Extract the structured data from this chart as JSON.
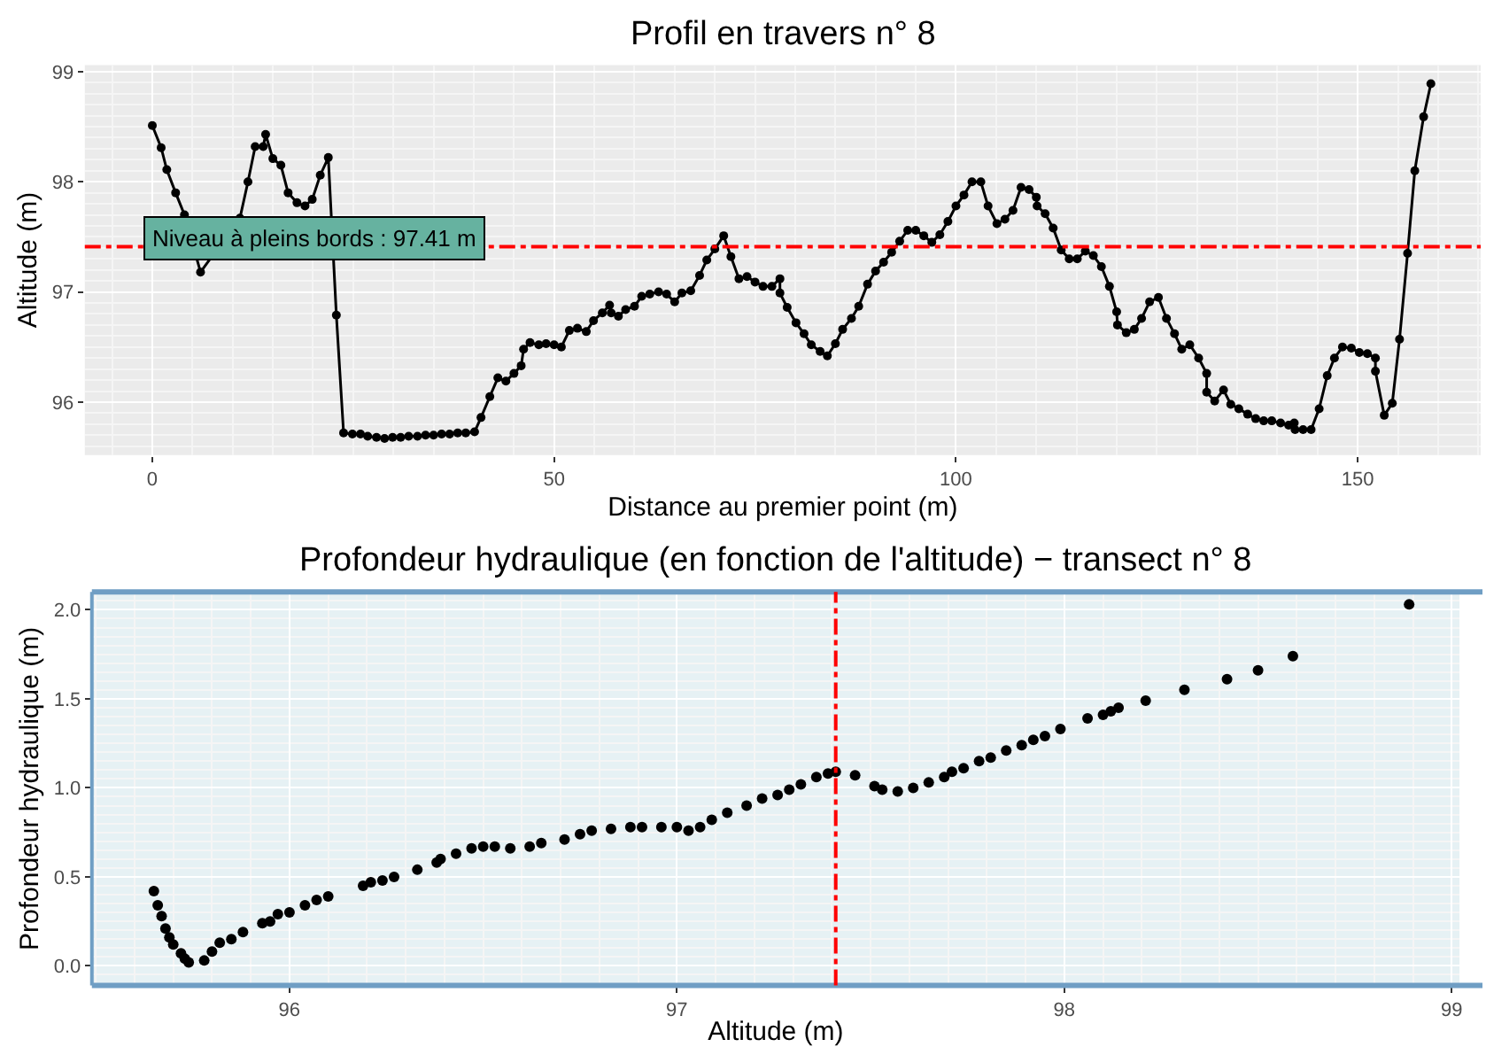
{
  "chart_data": [
    {
      "type": "line",
      "title": "Profil en travers n° 8",
      "xlabel": "Distance au premier point (m)",
      "ylabel": "Altitude (m)",
      "x": [
        0,
        1.1,
        1.8,
        2.9,
        4.0,
        6.0,
        10.9,
        11.9,
        12.8,
        13.8,
        14.1,
        15.0,
        16.0,
        16.9,
        18.0,
        19.0,
        19.9,
        20.9,
        21.9,
        22.9,
        23.8,
        24.9,
        25.9,
        26.8,
        27.9,
        28.9,
        29.9,
        30.9,
        31.9,
        33.0,
        34.0,
        35.0,
        36.0,
        37.0,
        38.0,
        39.0,
        40.1,
        40.9,
        42.0,
        43.0,
        44.0,
        45.0,
        45.9,
        46.2,
        47.0,
        48.1,
        49.0,
        50.0,
        50.9,
        51.9,
        52.9,
        54.0,
        54.9,
        56.0,
        56.9,
        57.1,
        58.0,
        58.9,
        60.0,
        60.9,
        61.9,
        63.0,
        64.0,
        65.0,
        65.9,
        67.0,
        68.1,
        69.0,
        70.0,
        71.1,
        72.0,
        73.0,
        74.0,
        75.0,
        76.0,
        77.1,
        78.1,
        78.1,
        79.0,
        80.1,
        81.1,
        82.0,
        83.1,
        84.0,
        85.0,
        85.9,
        87.0,
        87.9,
        89.0,
        90.0,
        91.0,
        92.0,
        93.0,
        94.0,
        95.0,
        96.0,
        97.0,
        98.0,
        99.0,
        100.0,
        101.0,
        102.0,
        103.1,
        104.0,
        105.1,
        106.1,
        107.1,
        108.1,
        109.1,
        110.0,
        110.1,
        111.1,
        112.1,
        113.1,
        114.1,
        115.1,
        116.1,
        117.1,
        118.1,
        119.1,
        120.0,
        120.1,
        121.2,
        122.2,
        123.1,
        124.1,
        125.2,
        126.2,
        127.2,
        128.1,
        129.1,
        130.2,
        131.2,
        131.2,
        132.2,
        133.3,
        134.2,
        135.2,
        136.3,
        137.3,
        138.3,
        139.3,
        140.4,
        141.4,
        142.1,
        142.2,
        143.2,
        144.2,
        145.2,
        146.2,
        147.1,
        148.1,
        149.2,
        150.2,
        151.2,
        152.2,
        152.2,
        153.3,
        154.3,
        155.2,
        156.2,
        157.1,
        158.2,
        159.1
      ],
      "series": [
        {
          "color": "#000000",
          "values": [
            98.51,
            98.31,
            98.11,
            97.9,
            97.7,
            97.18,
            97.67,
            98.0,
            98.32,
            98.32,
            98.43,
            98.21,
            98.15,
            97.9,
            97.81,
            97.78,
            97.84,
            98.06,
            98.22,
            96.79,
            95.72,
            95.71,
            95.71,
            95.69,
            95.68,
            95.67,
            95.68,
            95.68,
            95.69,
            95.69,
            95.7,
            95.7,
            95.71,
            95.71,
            95.72,
            95.72,
            95.73,
            95.86,
            96.05,
            96.22,
            96.19,
            96.26,
            96.33,
            96.48,
            96.54,
            96.52,
            96.53,
            96.52,
            96.5,
            96.65,
            96.67,
            96.64,
            96.74,
            96.81,
            96.88,
            96.81,
            96.78,
            96.84,
            96.87,
            96.96,
            96.98,
            97.0,
            96.98,
            96.91,
            96.99,
            97.01,
            97.15,
            97.29,
            97.39,
            97.51,
            97.32,
            97.12,
            97.14,
            97.09,
            97.05,
            97.05,
            97.12,
            96.99,
            96.86,
            96.72,
            96.62,
            96.52,
            96.46,
            96.42,
            96.53,
            96.66,
            96.76,
            96.87,
            97.07,
            97.19,
            97.27,
            97.36,
            97.46,
            97.56,
            97.56,
            97.51,
            97.45,
            97.52,
            97.64,
            97.78,
            97.88,
            98.0,
            98.0,
            97.78,
            97.62,
            97.66,
            97.74,
            97.95,
            97.93,
            97.86,
            97.78,
            97.71,
            97.58,
            97.38,
            97.3,
            97.3,
            97.37,
            97.33,
            97.23,
            97.05,
            96.82,
            96.7,
            96.63,
            96.66,
            96.76,
            96.91,
            96.95,
            96.76,
            96.62,
            96.48,
            96.52,
            96.4,
            96.26,
            96.09,
            96.01,
            96.11,
            95.98,
            95.94,
            95.89,
            95.85,
            95.83,
            95.83,
            95.81,
            95.79,
            95.81,
            95.75,
            95.75,
            95.75,
            95.94,
            96.24,
            96.4,
            96.5,
            96.49,
            96.45,
            96.44,
            96.4,
            96.28,
            95.88,
            95.99,
            96.57,
            97.35,
            98.1,
            98.59,
            98.89
          ]
        }
      ],
      "xlim": [
        -8.4,
        165.3
      ],
      "xticks": [
        0,
        50,
        100,
        150
      ],
      "ylim": [
        95.52,
        99.06
      ],
      "yticks": [
        96,
        97,
        98,
        99
      ],
      "grid": true,
      "marker": "circle",
      "line_style": "solid",
      "ref_lines": [
        {
          "axis": "y",
          "value": 97.41,
          "color": "#ff0000",
          "line_style": "dashdot"
        }
      ],
      "annotations": [
        {
          "text": "Niveau à pleins bords : 97.41 m",
          "x": 20.2,
          "y": 97.41
        }
      ]
    },
    {
      "type": "scatter",
      "title": "Profondeur hydraulique (en fonction de l'altitude) − transect n° 8",
      "xlabel": "Altitude (m)",
      "ylabel": "Profondeur hydraulique (m)",
      "x": [
        95.65,
        95.66,
        95.67,
        95.68,
        95.69,
        95.7,
        95.72,
        95.73,
        95.74,
        95.78,
        95.8,
        95.82,
        95.85,
        95.88,
        95.93,
        95.95,
        95.97,
        96.0,
        96.04,
        96.07,
        96.1,
        96.19,
        96.21,
        96.24,
        96.27,
        96.33,
        96.38,
        96.39,
        96.43,
        96.47,
        96.5,
        96.53,
        96.57,
        96.62,
        96.65,
        96.71,
        96.75,
        96.78,
        96.83,
        96.88,
        96.91,
        96.96,
        97.0,
        97.03,
        97.06,
        97.09,
        97.13,
        97.18,
        97.22,
        97.26,
        97.29,
        97.32,
        97.36,
        97.39,
        97.41,
        97.46,
        97.51,
        97.53,
        97.57,
        97.61,
        97.65,
        97.69,
        97.71,
        97.74,
        97.78,
        97.81,
        97.85,
        97.89,
        97.92,
        97.95,
        97.99,
        98.06,
        98.1,
        98.12,
        98.14,
        98.21,
        98.31,
        98.42,
        98.5,
        98.59,
        98.89
      ],
      "series": [
        {
          "color": "#000000",
          "values": [
            0.42,
            0.34,
            0.28,
            0.21,
            0.16,
            0.12,
            0.07,
            0.04,
            0.02,
            0.03,
            0.08,
            0.13,
            0.15,
            0.19,
            0.24,
            0.25,
            0.29,
            0.3,
            0.34,
            0.37,
            0.39,
            0.45,
            0.47,
            0.48,
            0.5,
            0.54,
            0.58,
            0.6,
            0.63,
            0.66,
            0.67,
            0.67,
            0.66,
            0.67,
            0.69,
            0.71,
            0.74,
            0.76,
            0.77,
            0.78,
            0.78,
            0.78,
            0.78,
            0.76,
            0.78,
            0.82,
            0.86,
            0.9,
            0.94,
            0.96,
            0.99,
            1.02,
            1.06,
            1.08,
            1.09,
            1.07,
            1.01,
            0.99,
            0.98,
            1.0,
            1.03,
            1.06,
            1.09,
            1.11,
            1.15,
            1.17,
            1.21,
            1.24,
            1.27,
            1.29,
            1.33,
            1.39,
            1.41,
            1.43,
            1.45,
            1.49,
            1.55,
            1.61,
            1.66,
            1.74,
            2.03
          ]
        }
      ],
      "xlim": [
        95.49,
        99.02
      ],
      "xticks": [
        96,
        97,
        98,
        99
      ],
      "ylim": [
        -0.11,
        2.1
      ],
      "yticks": [
        {
          "value": 0,
          "label": "0.0"
        },
        0.5,
        {
          "value": 1,
          "label": "1.0"
        },
        1.5,
        {
          "value": 2,
          "label": "2.0"
        }
      ],
      "grid": true,
      "marker": "circle",
      "ref_lines": [
        {
          "axis": "x",
          "value": 97.41,
          "color": "#ff0000",
          "line_style": "dashdot"
        }
      ]
    }
  ]
}
